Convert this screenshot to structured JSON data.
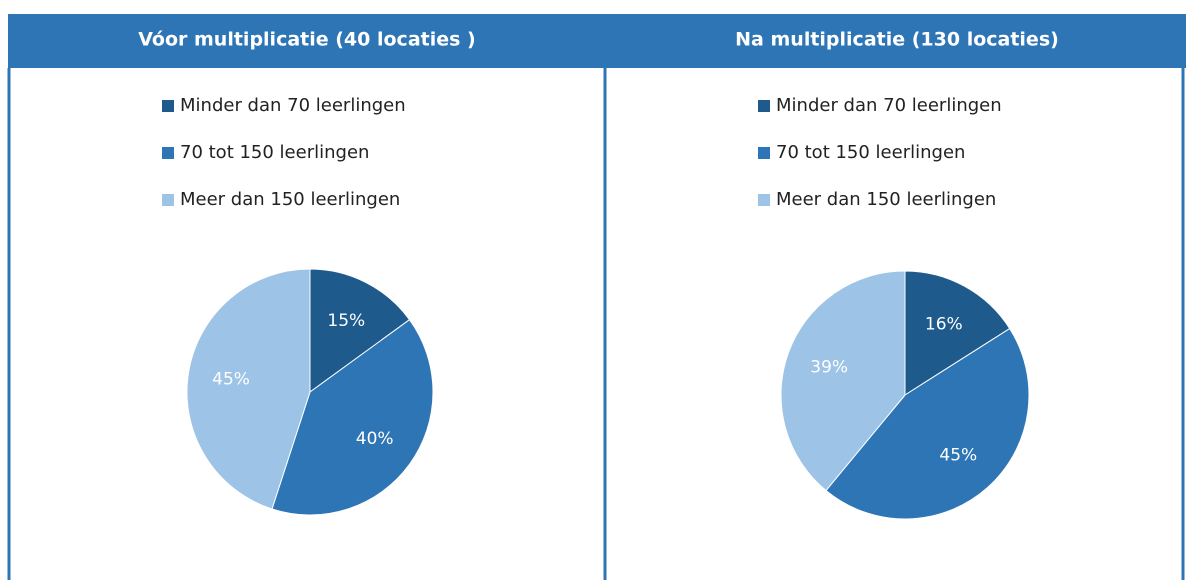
{
  "chart_data": [
    {
      "type": "pie",
      "title": "Vóor multiplicatie (40 locaties )",
      "categories": [
        "Minder dan 70 leerlingen",
        "70 tot 150 leerlingen",
        "Meer dan 150 leerlingen"
      ],
      "values": [
        15,
        40,
        45
      ],
      "value_labels": [
        "15%",
        "40%",
        "45%"
      ],
      "colors": [
        "#1f5a8c",
        "#2e75b6",
        "#9dc3e6"
      ]
    },
    {
      "type": "pie",
      "title": "Na multiplicatie (130 locaties)",
      "categories": [
        "Minder dan 70 leerlingen",
        "70 tot 150 leerlingen",
        "Meer dan 150 leerlingen"
      ],
      "values": [
        16,
        45,
        39
      ],
      "value_labels": [
        "16%",
        "45%",
        "39%"
      ],
      "colors": [
        "#1f5a8c",
        "#2e75b6",
        "#9dc3e6"
      ]
    }
  ]
}
